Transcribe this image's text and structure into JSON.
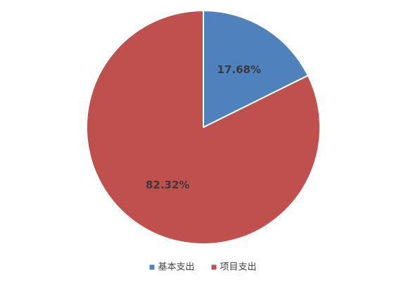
{
  "chart_data": {
    "type": "pie",
    "slices": [
      {
        "name": "基本支出",
        "value": 17.68,
        "label": "17.68%",
        "color": "#4f81bd"
      },
      {
        "name": "项目支出",
        "value": 82.32,
        "label": "82.32%",
        "color": "#c0504d"
      }
    ],
    "legend_position": "bottom",
    "start_angle": "12 o'clock",
    "direction": "clockwise"
  }
}
